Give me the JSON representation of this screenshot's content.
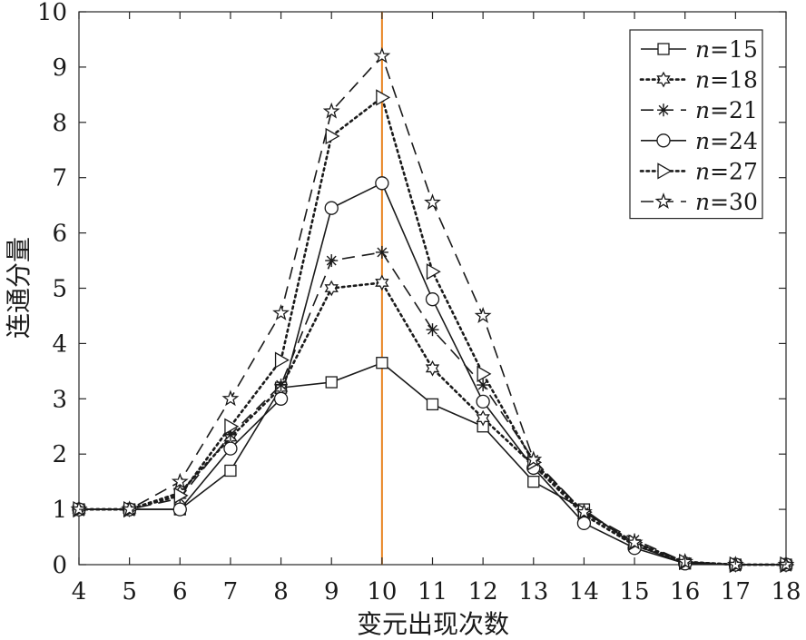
{
  "chart_data": {
    "type": "line",
    "xlabel": "变元出现次数",
    "ylabel": "连通分量",
    "xlim": [
      4,
      18
    ],
    "ylim": [
      0,
      10
    ],
    "x": [
      4,
      5,
      6,
      7,
      8,
      9,
      10,
      11,
      12,
      13,
      14,
      15,
      16,
      17,
      18
    ],
    "x_ticks": [
      "4",
      "5",
      "6",
      "7",
      "8",
      "9",
      "10",
      "11",
      "12",
      "13",
      "14",
      "15",
      "16",
      "17",
      "18"
    ],
    "y_ticks": [
      "0",
      "1",
      "2",
      "3",
      "4",
      "5",
      "6",
      "7",
      "8",
      "9",
      "10"
    ],
    "grid": false,
    "legend_position": "top-right",
    "reference_line": {
      "x": 10,
      "color": "#e8821e"
    },
    "series": [
      {
        "name": "n=15",
        "legend_prefix": "n",
        "legend_suffix": "=15",
        "marker": "square",
        "dash": "solid",
        "values": [
          1.0,
          1.0,
          1.0,
          1.7,
          3.2,
          3.3,
          3.65,
          2.9,
          2.5,
          1.5,
          1.0,
          0.35,
          0.02,
          0.0,
          0.0
        ]
      },
      {
        "name": "n=18",
        "legend_prefix": "n",
        "legend_suffix": "=18",
        "marker": "hexagram",
        "dash": "dotted",
        "values": [
          1.0,
          1.0,
          1.3,
          2.3,
          3.2,
          5.0,
          5.1,
          3.55,
          2.65,
          1.8,
          0.9,
          0.35,
          0.05,
          0.0,
          0.0
        ]
      },
      {
        "name": "n=21",
        "legend_prefix": "n",
        "legend_suffix": "=21",
        "marker": "asterisk",
        "dash": "dashed",
        "values": [
          1.0,
          1.0,
          1.2,
          2.35,
          3.25,
          5.5,
          5.65,
          4.25,
          3.25,
          1.9,
          0.95,
          0.45,
          0.05,
          0.0,
          0.0
        ]
      },
      {
        "name": "n=24",
        "legend_prefix": "n",
        "legend_suffix": "=24",
        "marker": "circle",
        "dash": "solid",
        "values": [
          1.0,
          1.0,
          1.0,
          2.1,
          3.0,
          6.45,
          6.9,
          4.8,
          2.95,
          1.75,
          0.75,
          0.3,
          0.02,
          0.0,
          0.0
        ]
      },
      {
        "name": "n=27",
        "legend_prefix": "n",
        "legend_suffix": "=27",
        "marker": "triangle-right",
        "dash": "dotted",
        "values": [
          1.0,
          1.0,
          1.25,
          2.5,
          3.7,
          7.75,
          8.45,
          5.3,
          3.45,
          1.85,
          0.95,
          0.4,
          0.05,
          0.0,
          0.0
        ]
      },
      {
        "name": "n=30",
        "legend_prefix": "n",
        "legend_suffix": "=30",
        "marker": "pentagram",
        "dash": "dashed",
        "values": [
          1.0,
          1.0,
          1.5,
          3.0,
          4.55,
          8.2,
          9.2,
          6.55,
          4.5,
          1.9,
          0.95,
          0.4,
          0.05,
          0.0,
          0.0
        ]
      }
    ]
  }
}
